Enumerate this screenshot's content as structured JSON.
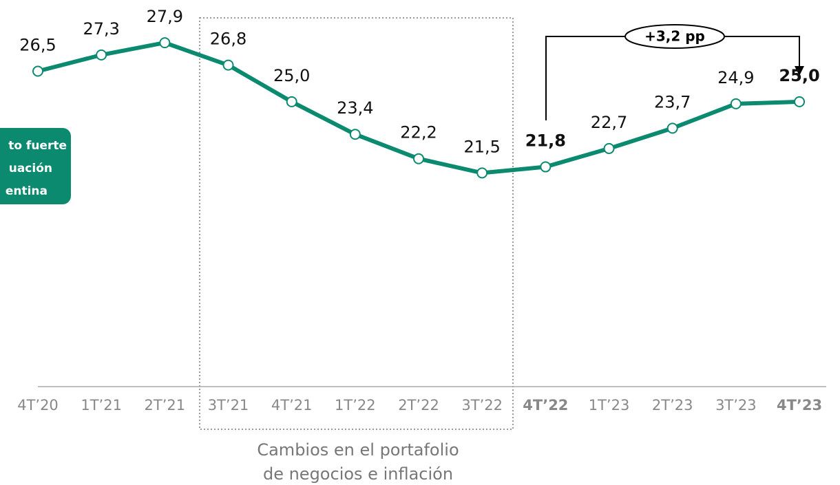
{
  "chart_data": {
    "type": "line",
    "categories": [
      "4T’20",
      "1T’21",
      "2T’21",
      "3T’21",
      "4T’21",
      "1T’22",
      "2T’22",
      "3T’22",
      "4T’22",
      "1T’23",
      "2T’23",
      "3T’23",
      "4T’23"
    ],
    "values": [
      26.5,
      27.3,
      27.9,
      26.8,
      25.0,
      23.4,
      22.2,
      21.5,
      21.8,
      22.7,
      23.7,
      24.9,
      25.0
    ],
    "value_labels": [
      "26,5",
      "27,3",
      "27,9",
      "26,8",
      "25,0",
      "23,4",
      "22,2",
      "21,5",
      "21,8",
      "22,7",
      "23,7",
      "24,9",
      "25,0"
    ],
    "color": "#0b8a70",
    "ylim": [
      11,
      30
    ],
    "annotations": {
      "change": "+3,2 pp",
      "box_label": [
        "Cambios en el portafolio",
        "de negocios e inflación"
      ],
      "badge": [
        "to fuerte",
        "uación",
        "entina"
      ]
    }
  }
}
